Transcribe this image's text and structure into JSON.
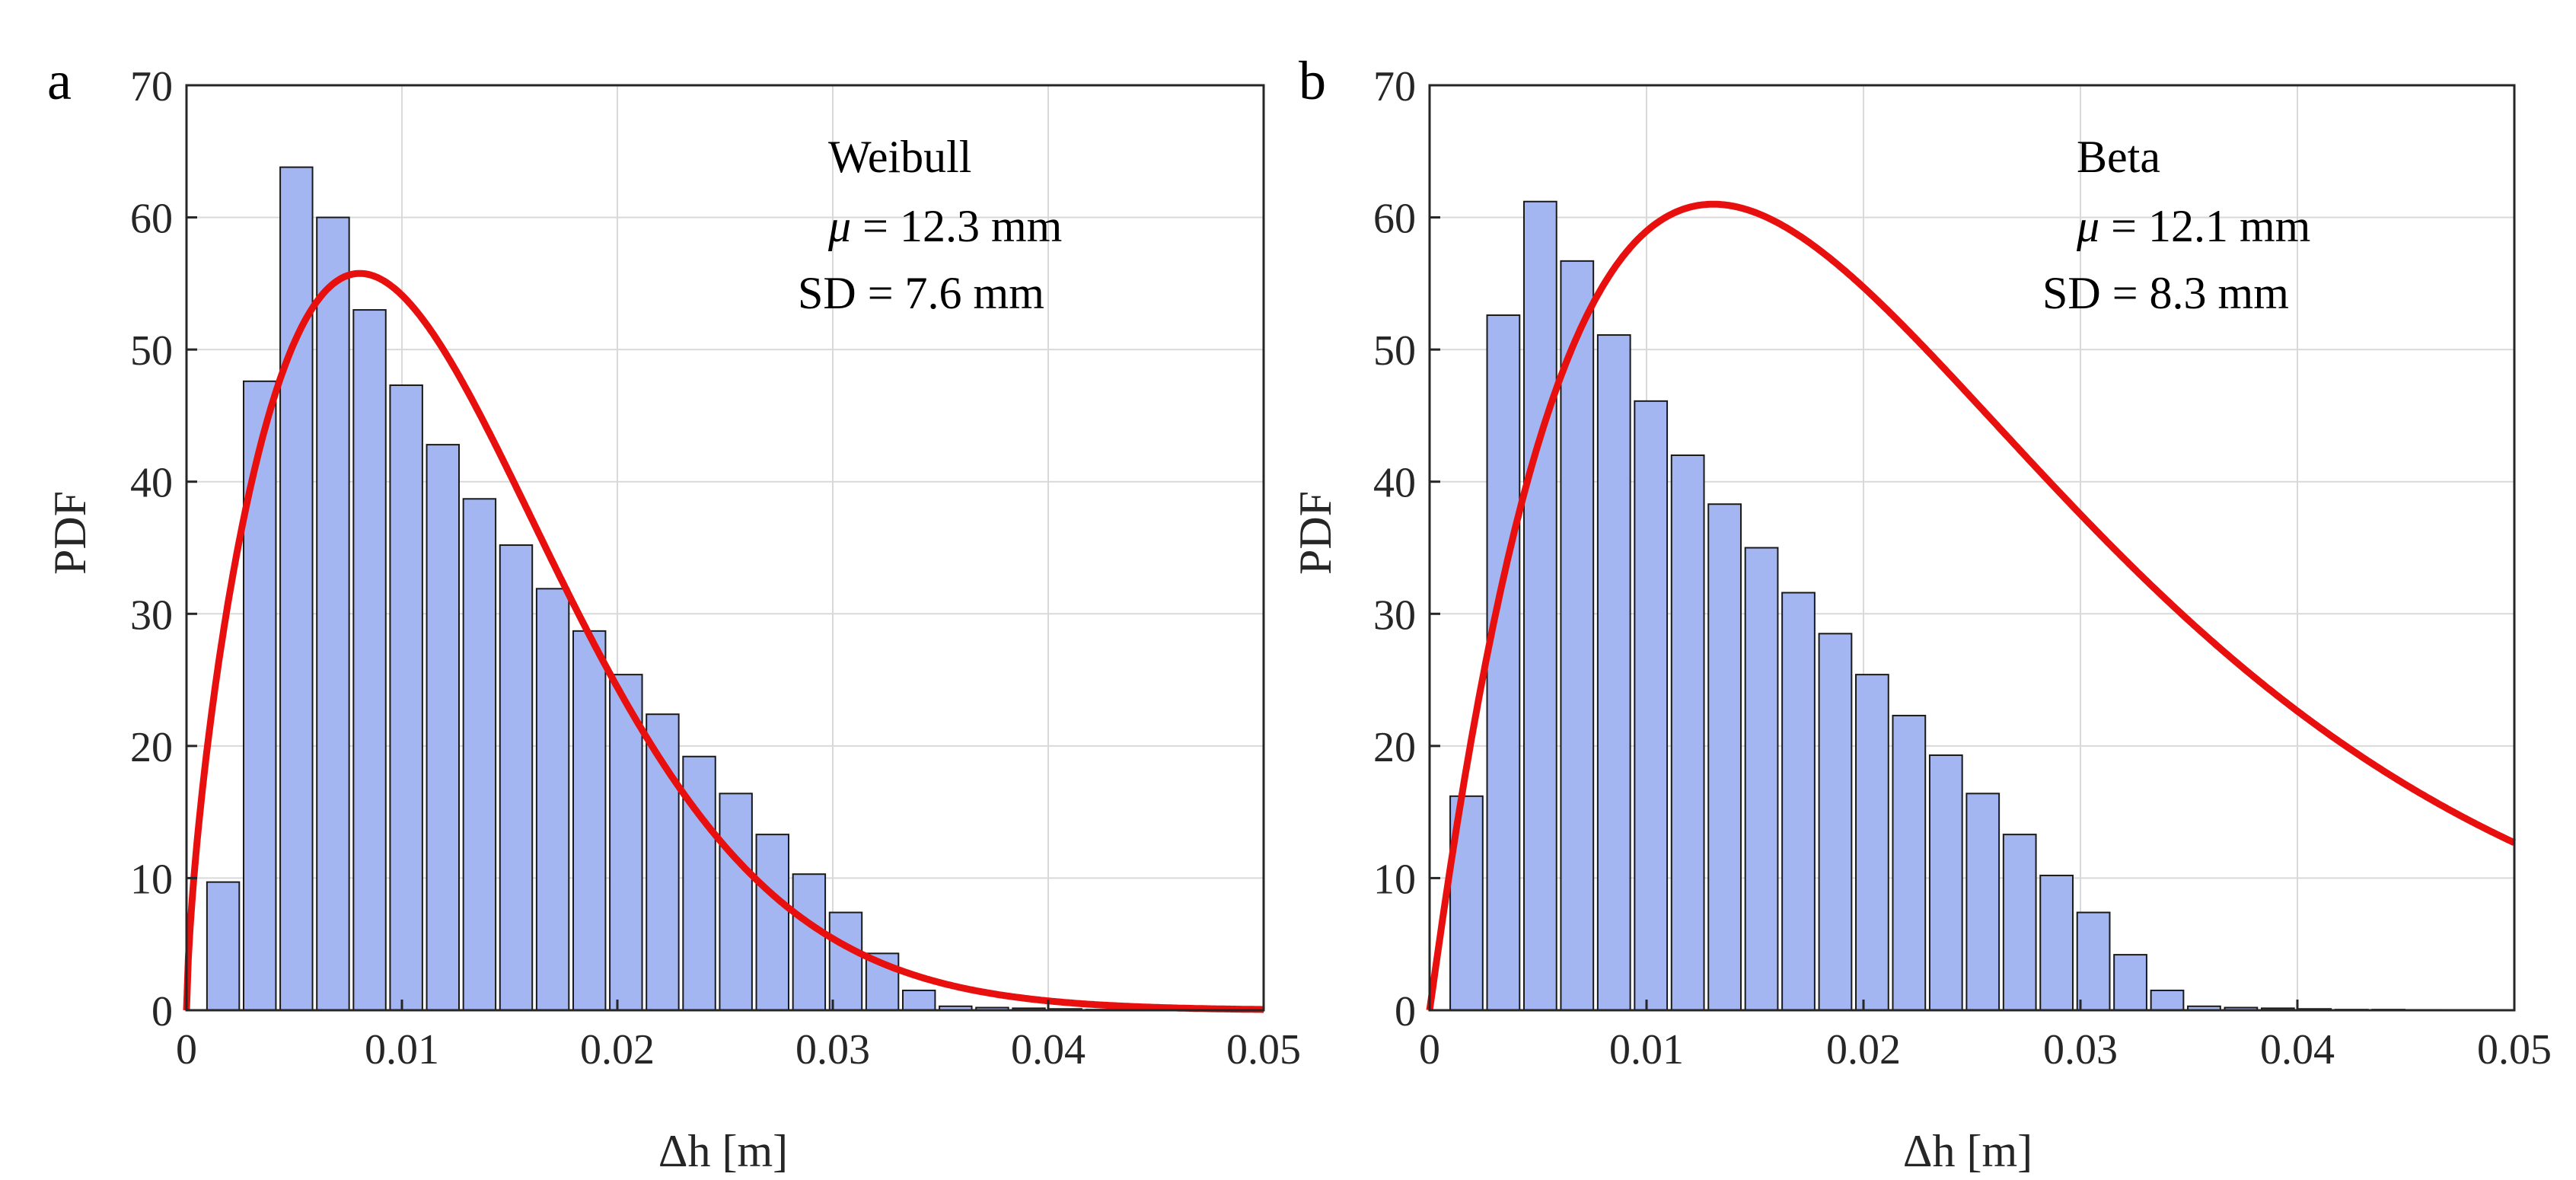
{
  "figure": {
    "panels": 2
  },
  "chart_data": [
    {
      "type": "bar",
      "panel_label": "a",
      "title": "",
      "xlabel": "Δh [m]",
      "ylabel": "PDF",
      "xlim": [
        0,
        0.05
      ],
      "ylim": [
        0,
        70
      ],
      "xticks": [
        0,
        0.01,
        0.02,
        0.03,
        0.04,
        0.05
      ],
      "xtick_labels": [
        "0",
        "0.01",
        "0.02",
        "0.03",
        "0.04",
        "0.05"
      ],
      "yticks": [
        0,
        10,
        20,
        30,
        40,
        50,
        60,
        70
      ],
      "ytick_labels": [
        "0",
        "10",
        "20",
        "30",
        "40",
        "50",
        "60",
        "70"
      ],
      "grid": true,
      "bar_width": 0.0015,
      "bins": {
        "centers": [
          0.0017,
          0.0034,
          0.0051,
          0.0068,
          0.0085,
          0.0102,
          0.0119,
          0.0136,
          0.0153,
          0.017,
          0.0187,
          0.0204,
          0.0221,
          0.0238,
          0.0255,
          0.0272,
          0.0289,
          0.0306,
          0.0323,
          0.034,
          0.0357,
          0.0374,
          0.0391,
          0.0408,
          0.0425,
          0.0442,
          0.0459,
          0.0476
        ],
        "values": [
          9.7,
          47.6,
          63.8,
          60.0,
          53.0,
          47.3,
          42.8,
          38.7,
          35.2,
          31.9,
          28.7,
          25.4,
          22.4,
          19.2,
          16.4,
          13.3,
          10.3,
          7.4,
          4.3,
          1.5,
          0.3,
          0.2,
          0.15,
          0.1,
          0.05,
          0.05,
          0.03,
          0.02
        ]
      },
      "fit": {
        "name": "Weibull",
        "color": "#e8100f",
        "distribution": "weibull",
        "params": {
          "shape": 1.67,
          "scale": 0.0139
        }
      },
      "annotation": {
        "name": "Weibull",
        "mu_symbol": "μ",
        "mu_text": " = 12.3 mm",
        "sd_text": "SD = 7.6 mm"
      },
      "colors": {
        "bar_fill": "#a3b6f2",
        "bar_edge": "#1a1a1a",
        "grid": "#d9d9d9",
        "axis": "#262626"
      }
    },
    {
      "type": "bar",
      "panel_label": "b",
      "title": "",
      "xlabel": "Δh [m]",
      "ylabel": "PDF",
      "xlim": [
        0,
        0.05
      ],
      "ylim": [
        0,
        70
      ],
      "xticks": [
        0,
        0.01,
        0.02,
        0.03,
        0.04,
        0.05
      ],
      "xtick_labels": [
        "0",
        "0.01",
        "0.02",
        "0.03",
        "0.04",
        "0.05"
      ],
      "yticks": [
        0,
        10,
        20,
        30,
        40,
        50,
        60,
        70
      ],
      "ytick_labels": [
        "0",
        "10",
        "20",
        "30",
        "40",
        "50",
        "60",
        "70"
      ],
      "grid": true,
      "bar_width": 0.0015,
      "bins": {
        "centers": [
          0.0017,
          0.0034,
          0.0051,
          0.0068,
          0.0085,
          0.0102,
          0.0119,
          0.0136,
          0.0153,
          0.017,
          0.0187,
          0.0204,
          0.0221,
          0.0238,
          0.0255,
          0.0272,
          0.0289,
          0.0306,
          0.0323,
          0.034,
          0.0357,
          0.0374,
          0.0391,
          0.0408,
          0.0425,
          0.0442,
          0.0459,
          0.0476
        ],
        "values": [
          16.2,
          52.6,
          61.2,
          56.7,
          51.1,
          46.1,
          42.0,
          38.3,
          35.0,
          31.6,
          28.5,
          25.4,
          22.3,
          19.3,
          16.4,
          13.3,
          10.2,
          7.4,
          4.2,
          1.5,
          0.3,
          0.2,
          0.15,
          0.1,
          0.05,
          0.05,
          0.03,
          0.02
        ]
      },
      "fit": {
        "name": "Beta",
        "color": "#e8100f",
        "distribution": "beta",
        "params": {
          "a": 2.022,
          "b": 78.15,
          "upper": 1.0,
          "scale_to_peak": 61.0
        }
      },
      "annotation": {
        "name": "Beta",
        "mu_symbol": "μ",
        "mu_text": " = 12.1 mm",
        "sd_text": "SD = 8.3 mm"
      },
      "colors": {
        "bar_fill": "#a3b6f2",
        "bar_edge": "#1a1a1a",
        "grid": "#d9d9d9",
        "axis": "#262626"
      }
    }
  ]
}
